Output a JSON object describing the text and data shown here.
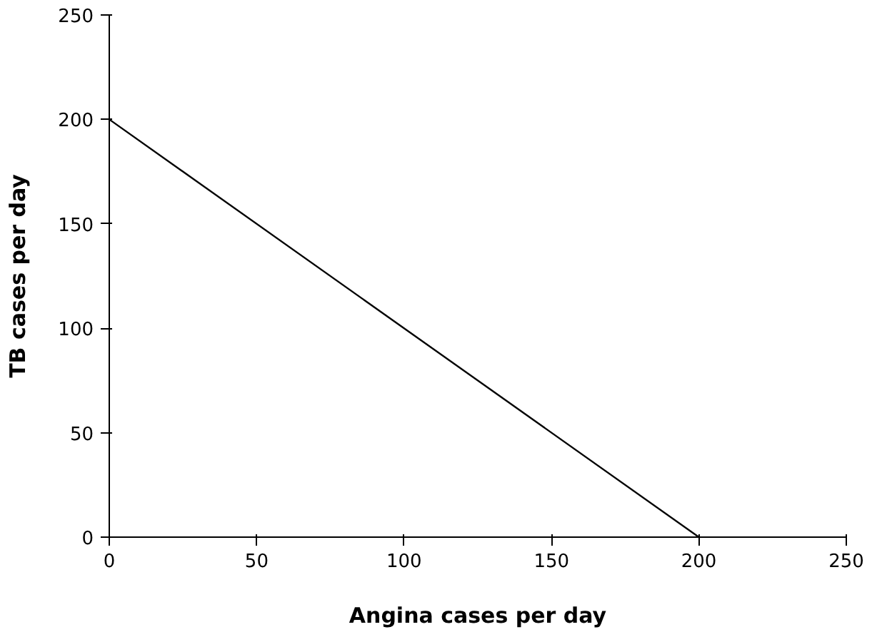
{
  "chart_data": {
    "type": "line",
    "xlabel": "Angina cases per day",
    "ylabel": "TB cases per day",
    "x": [
      0,
      200
    ],
    "series": [
      {
        "color": "#000000",
        "values": [
          200,
          0
        ]
      }
    ],
    "xlim": [
      0,
      250
    ],
    "ylim": [
      0,
      250
    ],
    "xticks": [
      0,
      50,
      100,
      150,
      200,
      250
    ],
    "yticks": [
      0,
      50,
      100,
      150,
      200,
      250
    ],
    "marker": "none",
    "line_style": "solid"
  }
}
